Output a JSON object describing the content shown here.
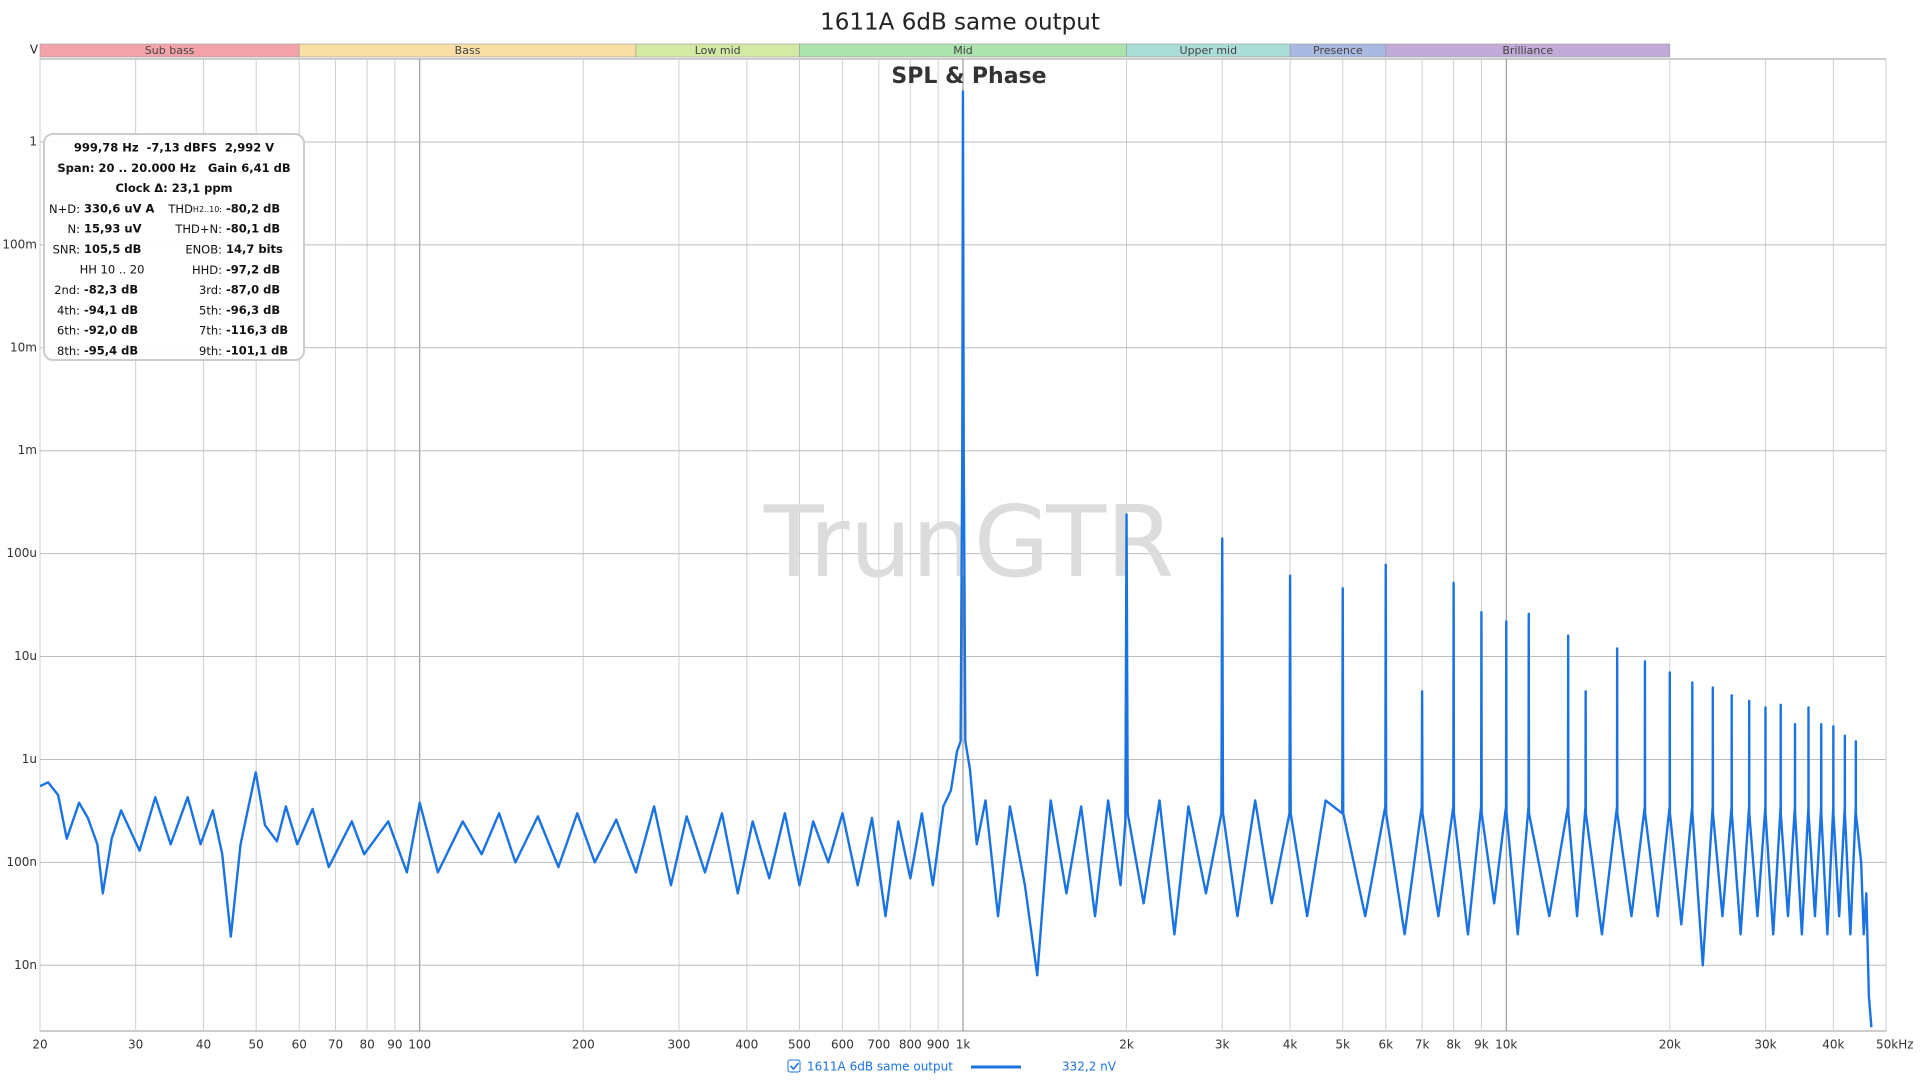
{
  "chart_data": {
    "type": "line",
    "title": "1611A 6dB same output",
    "subtitle": "SPL & Phase",
    "watermark": "TrunGTR",
    "y_label": "V",
    "log_x": true,
    "log_y": true,
    "grid": true,
    "xlim": [
      20,
      50000
    ],
    "ylim": [
      2.3e-09,
      6.4
    ],
    "xticks": [
      20,
      30,
      40,
      50,
      60,
      70,
      80,
      90,
      100,
      200,
      300,
      400,
      500,
      600,
      700,
      800,
      900,
      {
        "value": 1000,
        "label": "1k"
      },
      {
        "value": 2000,
        "label": "2k"
      },
      {
        "value": 3000,
        "label": "3k"
      },
      {
        "value": 4000,
        "label": "4k"
      },
      {
        "value": 5000,
        "label": "5k"
      },
      {
        "value": 6000,
        "label": "6k"
      },
      {
        "value": 7000,
        "label": "7k"
      },
      {
        "value": 8000,
        "label": "8k"
      },
      {
        "value": 9000,
        "label": "9k"
      },
      {
        "value": 10000,
        "label": "10k"
      },
      {
        "value": 20000,
        "label": "20k"
      },
      {
        "value": 30000,
        "label": "30k"
      },
      {
        "value": 40000,
        "label": "40k"
      },
      {
        "value": 50000,
        "label": "50kHz"
      }
    ],
    "yticks": [
      {
        "value": 1e-08,
        "label": "10n"
      },
      {
        "value": 1e-07,
        "label": "100n"
      },
      {
        "value": 1e-06,
        "label": "1u"
      },
      {
        "value": 1e-05,
        "label": "10u"
      },
      {
        "value": 0.0001,
        "label": "100u"
      },
      {
        "value": 0.001,
        "label": "1m"
      },
      {
        "value": 0.01,
        "label": "10m"
      },
      {
        "value": 0.1,
        "label": "100m"
      },
      1
    ],
    "bands": [
      {
        "name": "Sub bass",
        "from": 20,
        "to": 60,
        "color": "#f4a3aa"
      },
      {
        "name": "Bass",
        "from": 60,
        "to": 250,
        "color": "#f9dea6"
      },
      {
        "name": "Low mid",
        "from": 250,
        "to": 500,
        "color": "#d2eaa4"
      },
      {
        "name": "Mid",
        "from": 500,
        "to": 2000,
        "color": "#abe2ad"
      },
      {
        "name": "Upper mid",
        "from": 2000,
        "to": 4000,
        "color": "#aadcd8"
      },
      {
        "name": "Presence",
        "from": 4000,
        "to": 6000,
        "color": "#aab9e2"
      },
      {
        "name": "Brilliance",
        "from": 6000,
        "to": 20000,
        "color": "#c2aad8"
      }
    ],
    "x": [
      20,
      20.7,
      21.6,
      22.4,
      23.6,
      24.5,
      25.5,
      26.1,
      27.1,
      28.2,
      30.5,
      32.6,
      34.8,
      37.4,
      39.5,
      41.6,
      43.3,
      44.9,
      46.8,
      49.9,
      51.9,
      54.6,
      56.7,
      59.5,
      63.5,
      68,
      75,
      79,
      87.5,
      94.7,
      100,
      108,
      120,
      130,
      140,
      150,
      165,
      180,
      195,
      210,
      230,
      250,
      270,
      290,
      310,
      335,
      360,
      385,
      410,
      440,
      470,
      500,
      530,
      565,
      600,
      640,
      680,
      720,
      760,
      800,
      840,
      880,
      920,
      950,
      975,
      990,
      997,
      999.78,
      1003,
      1010,
      1030,
      1060,
      1100,
      1160,
      1220,
      1300,
      1370,
      1450,
      1550,
      1650,
      1750,
      1850,
      1950,
      1990,
      2000,
      2010,
      2150,
      2300,
      2450,
      2600,
      2800,
      2990,
      3000,
      3010,
      3200,
      3450,
      3700,
      3990,
      4000,
      4010,
      4300,
      4650,
      4990,
      5000,
      5010,
      5500,
      5990,
      6000,
      6010,
      6500,
      6990,
      7000,
      7010,
      7500,
      7990,
      8000,
      8010,
      8500,
      8990,
      9000,
      9010,
      9500,
      9990,
      10000,
      10010,
      10500,
      10990,
      11000,
      11010,
      12000,
      12990,
      13000,
      13010,
      13500,
      13990,
      14000,
      14010,
      15000,
      15990,
      16000,
      16010,
      17000,
      17990,
      18000,
      18010,
      19000,
      19990,
      20000,
      20010,
      21000,
      21990,
      22000,
      22010,
      23000,
      23990,
      24000,
      24010,
      25000,
      25990,
      26000,
      26010,
      27000,
      27990,
      28000,
      28010,
      29000,
      29990,
      30000,
      30010,
      31000,
      31990,
      32000,
      32010,
      33000,
      33990,
      34000,
      34010,
      35000,
      35990,
      36000,
      36010,
      37000,
      37990,
      38000,
      38010,
      39000,
      39990,
      40000,
      40010,
      41000,
      41990,
      42000,
      42010,
      43000,
      43990,
      44000,
      44010,
      45000,
      45500,
      46000,
      46500,
      47000
    ],
    "series": [
      {
        "name": "1611A 6dB same output",
        "color": "#1a73e2",
        "values": [
          5.5e-07,
          6e-07,
          4.5e-07,
          1.7e-07,
          3.8e-07,
          2.7e-07,
          1.5e-07,
          5e-08,
          1.7e-07,
          3.2e-07,
          1.3e-07,
          4.3e-07,
          1.5e-07,
          4.3e-07,
          1.5e-07,
          3.2e-07,
          1.2e-07,
          1.9e-08,
          1.5e-07,
          7.5e-07,
          2.3e-07,
          1.6e-07,
          3.5e-07,
          1.5e-07,
          3.3e-07,
          9e-08,
          2.5e-07,
          1.2e-07,
          2.5e-07,
          8e-08,
          3.8e-07,
          8e-08,
          2.5e-07,
          1.2e-07,
          3e-07,
          1e-07,
          2.8e-07,
          9e-08,
          3e-07,
          1e-07,
          2.6e-07,
          8e-08,
          3.5e-07,
          6e-08,
          2.8e-07,
          8e-08,
          3e-07,
          5e-08,
          2.5e-07,
          7e-08,
          3e-07,
          6e-08,
          2.5e-07,
          1e-07,
          3e-07,
          6e-08,
          2.7e-07,
          3e-08,
          2.5e-07,
          7e-08,
          3e-07,
          6e-08,
          3.5e-07,
          5e-07,
          1.2e-06,
          1.5e-06,
          0.001,
          3.1,
          0.001,
          1.5e-06,
          8e-07,
          1.5e-07,
          4e-07,
          3e-08,
          3.5e-07,
          6e-08,
          8e-09,
          4e-07,
          5e-08,
          3.5e-07,
          3e-08,
          4e-07,
          6e-08,
          2.5e-07,
          0.00024,
          3e-07,
          4e-08,
          4e-07,
          2e-08,
          3.5e-07,
          5e-08,
          3e-07,
          0.00014,
          3e-07,
          3e-08,
          4e-07,
          4e-08,
          3e-07,
          6.1e-05,
          3e-07,
          3e-08,
          4e-07,
          3e-07,
          4.6e-05,
          3e-07,
          3e-08,
          3.5e-07,
          7.8e-05,
          3e-07,
          2e-08,
          3.5e-07,
          4.6e-06,
          3e-07,
          3e-08,
          3.5e-07,
          5.2e-05,
          3e-07,
          2e-08,
          3.5e-07,
          2.7e-05,
          3e-07,
          4e-08,
          3.5e-07,
          2.2e-05,
          3e-07,
          2e-08,
          3.5e-07,
          2.6e-05,
          3e-07,
          3e-08,
          3.5e-07,
          1.6e-05,
          3e-07,
          3e-08,
          3.5e-07,
          4.6e-06,
          3e-07,
          2e-08,
          3.5e-07,
          1.2e-05,
          3e-07,
          3e-08,
          3.5e-07,
          9e-06,
          3e-07,
          3e-08,
          3.5e-07,
          7e-06,
          3e-07,
          2.5e-08,
          3.5e-07,
          5.6e-06,
          3e-07,
          1e-08,
          3.5e-07,
          5e-06,
          3e-07,
          3e-08,
          3.5e-07,
          4.2e-06,
          3e-07,
          2e-08,
          3.5e-07,
          3.7e-06,
          3e-07,
          3e-08,
          3.5e-07,
          3.2e-06,
          3e-07,
          2e-08,
          3.5e-07,
          3.4e-06,
          3e-07,
          3e-08,
          3.5e-07,
          2.2e-06,
          3e-07,
          2e-08,
          3.5e-07,
          3.2e-06,
          3e-07,
          3e-08,
          3.5e-07,
          2.2e-06,
          3e-07,
          2e-08,
          3.5e-07,
          2.1e-06,
          3e-07,
          3e-08,
          3.5e-07,
          1.7e-06,
          3e-07,
          2e-08,
          3.5e-07,
          1.5e-06,
          3e-07,
          1e-07,
          2e-08,
          5e-08,
          5e-09,
          2.5e-09
        ]
      }
    ],
    "cursor_value": "332,2 nV",
    "info": {
      "lines": [
        "999,78 Hz  -7,13 dBFS  2,992 V",
        "Span: 20 .. 20.000 Hz   Gain 6,41 dB",
        "Clock Δ: 23,1 ppm"
      ],
      "pairs": [
        [
          {
            "label": "N+D:",
            "value": "330,6 uV A"
          },
          {
            "label": "THD",
            "sub": "H2..10:",
            "value": "-80,2 dB"
          }
        ],
        [
          {
            "label": "N:",
            "value": "15,93 uV"
          },
          {
            "label": "THD+N:",
            "value": "-80,1 dB"
          }
        ],
        [
          {
            "label": "SNR:",
            "value": "105,5 dB"
          },
          {
            "label": "ENOB:",
            "value": "14,7 bits"
          }
        ],
        [
          {
            "label": "HH 10 .. 20"
          },
          {
            "label": "HHD:",
            "value": "-97,2 dB"
          }
        ],
        [
          {
            "label": "2nd:",
            "value": "-82,3 dB"
          },
          {
            "label": "3rd:",
            "value": "-87,0 dB"
          }
        ],
        [
          {
            "label": "4th:",
            "value": "-94,1 dB"
          },
          {
            "label": "5th:",
            "value": "-96,3 dB"
          }
        ],
        [
          {
            "label": "6th:",
            "value": "-92,0 dB"
          },
          {
            "label": "7th:",
            "value": "-116,3 dB"
          }
        ],
        [
          {
            "label": "8th:",
            "value": "-95,4 dB"
          },
          {
            "label": "9th:",
            "value": "-101,1 dB"
          }
        ]
      ]
    }
  }
}
